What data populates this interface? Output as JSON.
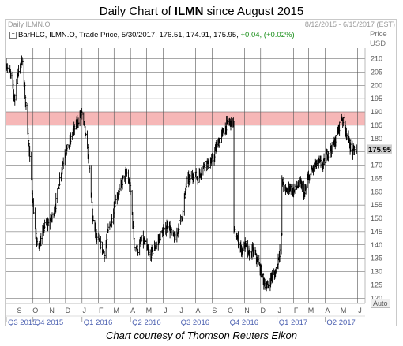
{
  "title": {
    "prefix": "Daily Chart of ",
    "ticker": "ILMN",
    "suffix": " since August 2015"
  },
  "header_left": "Daily ILMN.O",
  "header_right": "8/12/2015 - 6/15/2017 (EST)",
  "infobar": {
    "collapse_icon": "minus-box-icon",
    "text": "BarHLC, ILMN.O, Trade Price, 5/30/2017, 176.51, 174.91, 175.95,",
    "change": "+0.04, (+0.02%)"
  },
  "axis_title_price": "Price",
  "axis_title_unit": "USD",
  "auto_label": "Auto",
  "caption": "Chart courtesy of Thomson Reuters Eikon",
  "colors": {
    "bars": "#000000",
    "band": "#f6b7b7",
    "grid": "#555555",
    "last_price_bg": "#cfcfcf"
  },
  "chart_data": {
    "type": "bar",
    "style": "daily HLC bars",
    "ylim": [
      118,
      214
    ],
    "y_ticks": [
      210,
      205,
      200,
      195,
      190,
      185,
      180,
      175,
      170,
      165,
      160,
      155,
      150,
      145,
      140,
      135,
      130,
      125,
      120
    ],
    "last_price": 175.95,
    "band": {
      "from": 185,
      "to": 190
    },
    "grid": true,
    "x_month_labels": [
      {
        "label": "S",
        "date": "2015-09-01"
      },
      {
        "label": "O",
        "date": "2015-10-01"
      },
      {
        "label": "N",
        "date": "2015-11-01"
      },
      {
        "label": "D",
        "date": "2015-12-01"
      },
      {
        "label": "J",
        "date": "2016-01-01"
      },
      {
        "label": "F",
        "date": "2016-02-01"
      },
      {
        "label": "M",
        "date": "2016-03-01"
      },
      {
        "label": "A",
        "date": "2016-04-01"
      },
      {
        "label": "M",
        "date": "2016-05-01"
      },
      {
        "label": "J",
        "date": "2016-06-01"
      },
      {
        "label": "J",
        "date": "2016-07-01"
      },
      {
        "label": "A",
        "date": "2016-08-01"
      },
      {
        "label": "S",
        "date": "2016-09-01"
      },
      {
        "label": "O",
        "date": "2016-10-01"
      },
      {
        "label": "N",
        "date": "2016-11-01"
      },
      {
        "label": "D",
        "date": "2016-12-01"
      },
      {
        "label": "J",
        "date": "2017-01-01"
      },
      {
        "label": "F",
        "date": "2017-02-01"
      },
      {
        "label": "M",
        "date": "2017-03-01"
      },
      {
        "label": "A",
        "date": "2017-04-01"
      },
      {
        "label": "M",
        "date": "2017-05-01"
      },
      {
        "label": "J",
        "date": "2017-06-01"
      }
    ],
    "x_quarter_labels": [
      {
        "label": "Q3 2015",
        "date": "2015-08-12"
      },
      {
        "label": "Q4 2015",
        "date": "2015-10-01"
      },
      {
        "label": "Q1 2016",
        "date": "2016-01-01"
      },
      {
        "label": "Q2 2016",
        "date": "2016-04-01"
      },
      {
        "label": "Q3 2016",
        "date": "2016-07-01"
      },
      {
        "label": "Q4 2016",
        "date": "2016-10-01"
      },
      {
        "label": "Q1 2017",
        "date": "2017-01-01"
      },
      {
        "label": "Q2 2017",
        "date": "2017-04-01"
      }
    ],
    "x_range": [
      "2015-08-12",
      "2017-06-15"
    ],
    "price_path": [
      {
        "date": "2015-08-12",
        "close": 208
      },
      {
        "date": "2015-08-20",
        "close": 204
      },
      {
        "date": "2015-08-27",
        "close": 195
      },
      {
        "date": "2015-09-03",
        "close": 205
      },
      {
        "date": "2015-09-10",
        "close": 210
      },
      {
        "date": "2015-09-17",
        "close": 194
      },
      {
        "date": "2015-09-24",
        "close": 175
      },
      {
        "date": "2015-10-01",
        "close": 155
      },
      {
        "date": "2015-10-08",
        "close": 140
      },
      {
        "date": "2015-10-15",
        "close": 141
      },
      {
        "date": "2015-10-22",
        "close": 147
      },
      {
        "date": "2015-10-29",
        "close": 148
      },
      {
        "date": "2015-11-05",
        "close": 150
      },
      {
        "date": "2015-11-12",
        "close": 155
      },
      {
        "date": "2015-11-20",
        "close": 165
      },
      {
        "date": "2015-11-30",
        "close": 175
      },
      {
        "date": "2015-12-07",
        "close": 177
      },
      {
        "date": "2015-12-14",
        "close": 182
      },
      {
        "date": "2015-12-21",
        "close": 185
      },
      {
        "date": "2015-12-31",
        "close": 190
      },
      {
        "date": "2016-01-07",
        "close": 182
      },
      {
        "date": "2016-01-14",
        "close": 170
      },
      {
        "date": "2016-01-21",
        "close": 150
      },
      {
        "date": "2016-01-28",
        "close": 142
      },
      {
        "date": "2016-02-05",
        "close": 140
      },
      {
        "date": "2016-02-12",
        "close": 136
      },
      {
        "date": "2016-02-19",
        "close": 146
      },
      {
        "date": "2016-02-26",
        "close": 150
      },
      {
        "date": "2016-03-04",
        "close": 158
      },
      {
        "date": "2016-03-11",
        "close": 160
      },
      {
        "date": "2016-03-18",
        "close": 165
      },
      {
        "date": "2016-03-25",
        "close": 167
      },
      {
        "date": "2016-04-01",
        "close": 160
      },
      {
        "date": "2016-04-08",
        "close": 140
      },
      {
        "date": "2016-04-15",
        "close": 138
      },
      {
        "date": "2016-04-22",
        "close": 142
      },
      {
        "date": "2016-04-29",
        "close": 140
      },
      {
        "date": "2016-05-06",
        "close": 136
      },
      {
        "date": "2016-05-13",
        "close": 138
      },
      {
        "date": "2016-05-20",
        "close": 140
      },
      {
        "date": "2016-05-27",
        "close": 144
      },
      {
        "date": "2016-06-03",
        "close": 145
      },
      {
        "date": "2016-06-10",
        "close": 148
      },
      {
        "date": "2016-06-17",
        "close": 144
      },
      {
        "date": "2016-06-24",
        "close": 142
      },
      {
        "date": "2016-07-01",
        "close": 148
      },
      {
        "date": "2016-07-08",
        "close": 152
      },
      {
        "date": "2016-07-15",
        "close": 164
      },
      {
        "date": "2016-07-22",
        "close": 165
      },
      {
        "date": "2016-07-29",
        "close": 167
      },
      {
        "date": "2016-08-05",
        "close": 165
      },
      {
        "date": "2016-08-12",
        "close": 168
      },
      {
        "date": "2016-08-19",
        "close": 171
      },
      {
        "date": "2016-08-26",
        "close": 170
      },
      {
        "date": "2016-09-02",
        "close": 172
      },
      {
        "date": "2016-09-09",
        "close": 177
      },
      {
        "date": "2016-09-16",
        "close": 180
      },
      {
        "date": "2016-09-23",
        "close": 183
      },
      {
        "date": "2016-09-30",
        "close": 186
      },
      {
        "date": "2016-10-11",
        "close": 186
      },
      {
        "date": "2016-10-12",
        "close": 145
      },
      {
        "date": "2016-10-19",
        "close": 142
      },
      {
        "date": "2016-10-26",
        "close": 138
      },
      {
        "date": "2016-11-02",
        "close": 140
      },
      {
        "date": "2016-11-09",
        "close": 136
      },
      {
        "date": "2016-11-16",
        "close": 138
      },
      {
        "date": "2016-11-23",
        "close": 135
      },
      {
        "date": "2016-11-30",
        "close": 131
      },
      {
        "date": "2016-12-07",
        "close": 126
      },
      {
        "date": "2016-12-14",
        "close": 124
      },
      {
        "date": "2016-12-21",
        "close": 128
      },
      {
        "date": "2016-12-28",
        "close": 129
      },
      {
        "date": "2017-01-06",
        "close": 138
      },
      {
        "date": "2017-01-09",
        "close": 143
      },
      {
        "date": "2017-01-10",
        "close": 164
      },
      {
        "date": "2017-01-17",
        "close": 160
      },
      {
        "date": "2017-01-24",
        "close": 162
      },
      {
        "date": "2017-01-31",
        "close": 160
      },
      {
        "date": "2017-02-07",
        "close": 162
      },
      {
        "date": "2017-02-14",
        "close": 163
      },
      {
        "date": "2017-02-21",
        "close": 159
      },
      {
        "date": "2017-02-28",
        "close": 165
      },
      {
        "date": "2017-03-07",
        "close": 168
      },
      {
        "date": "2017-03-14",
        "close": 170
      },
      {
        "date": "2017-03-21",
        "close": 171
      },
      {
        "date": "2017-03-28",
        "close": 170
      },
      {
        "date": "2017-04-04",
        "close": 174
      },
      {
        "date": "2017-04-11",
        "close": 176
      },
      {
        "date": "2017-04-18",
        "close": 178
      },
      {
        "date": "2017-04-25",
        "close": 183
      },
      {
        "date": "2017-05-02",
        "close": 188
      },
      {
        "date": "2017-05-09",
        "close": 184
      },
      {
        "date": "2017-05-16",
        "close": 178
      },
      {
        "date": "2017-05-23",
        "close": 175
      },
      {
        "date": "2017-05-30",
        "close": 175.95
      }
    ]
  }
}
